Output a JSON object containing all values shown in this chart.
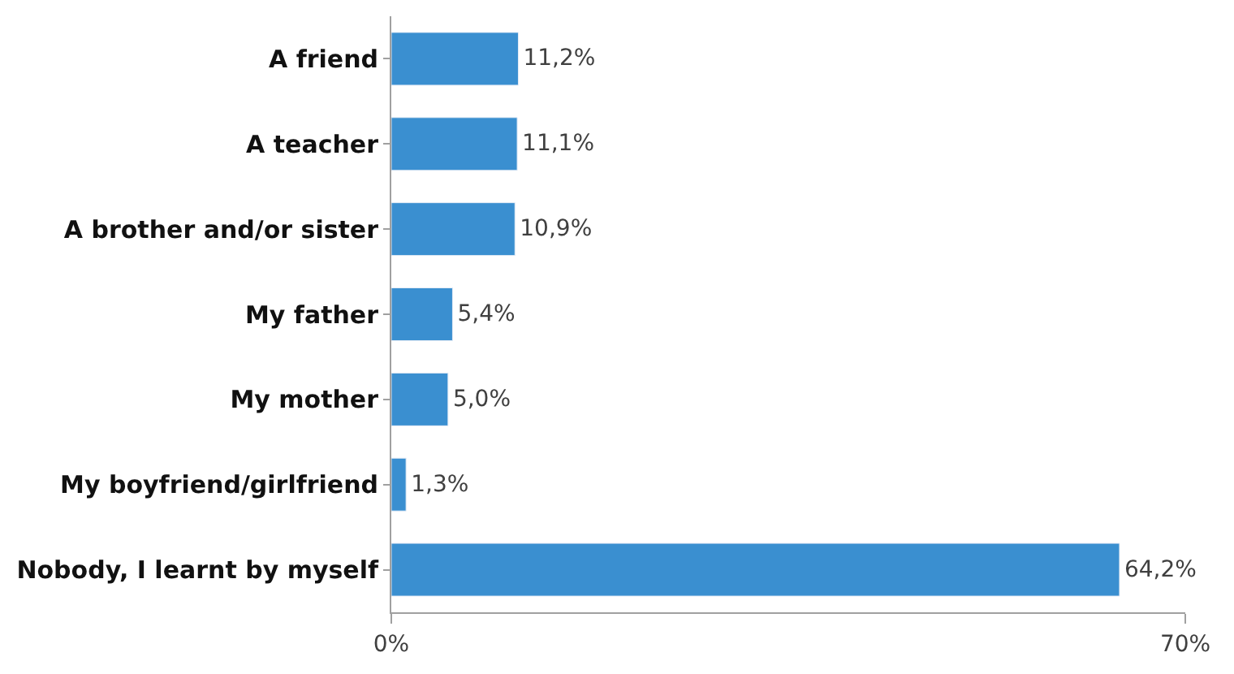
{
  "chart_data": {
    "type": "bar",
    "orientation": "horizontal",
    "categories": [
      "A friend",
      "A teacher",
      "A brother and/or sister",
      "My father",
      "My mother",
      "My boyfriend/girlfriend",
      "Nobody, I learnt by myself"
    ],
    "values": [
      11.2,
      11.1,
      10.9,
      5.4,
      5.0,
      1.3,
      64.2
    ],
    "value_labels": [
      "11,2%",
      "11,1%",
      "10,9%",
      "5,4%",
      "5,0%",
      "1,3%",
      "64,2%"
    ],
    "color": "#3a8fd0",
    "xlim": [
      0,
      70
    ],
    "xticks": [
      {
        "value": 0,
        "label": "0%"
      },
      {
        "value": 70,
        "label": "70%"
      }
    ]
  }
}
